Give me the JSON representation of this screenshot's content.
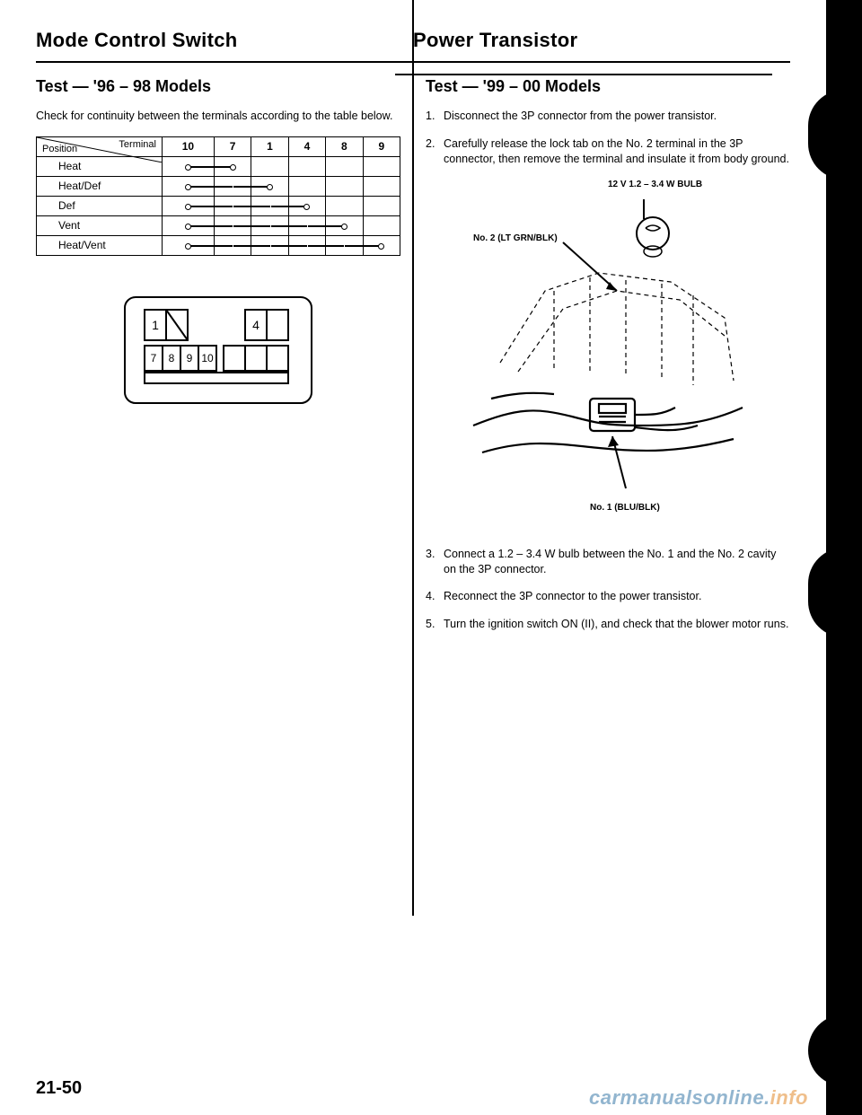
{
  "left_title": "Mode Control Switch",
  "right_title": "Power Transistor",
  "left": {
    "subtitle": "Test — '96 – 98 Models",
    "intro": "Check for continuity between the terminals according to the table below.",
    "table": {
      "diag_top": "Terminal",
      "diag_bottom": "Position",
      "cols": [
        "10",
        "7",
        "1",
        "4",
        "8",
        "9"
      ],
      "rows": [
        "Heat",
        "Heat/Def",
        "Def",
        "Vent",
        "Heat/Vent"
      ],
      "continuity": [
        [
          0,
          1
        ],
        [
          0,
          2
        ],
        [
          0,
          3
        ],
        [
          0,
          4
        ],
        [
          0,
          5
        ]
      ]
    },
    "connector_pins": {
      "top_left": "1",
      "top_right": "4",
      "bottom": [
        "7",
        "8",
        "9",
        "10"
      ]
    }
  },
  "right": {
    "subtitle": "Test — '99 – 00 Models",
    "steps_top": [
      "Disconnect the 3P connector from the power transistor.",
      "Carefully release the lock tab on the No. 2 terminal in the 3P connector, then remove the terminal and insulate it from body ground."
    ],
    "labels": {
      "bulb": "12 V 1.2 – 3.4 W BULB",
      "no2": "No. 2 (LT GRN/BLK)",
      "no1": "No. 1 (BLU/BLK)"
    },
    "steps_bottom": [
      "Connect a 1.2 – 3.4 W bulb between the No. 1 and the No. 2 cavity on the 3P connector.",
      "Reconnect the 3P connector to the power transistor.",
      "Turn the ignition switch ON (II), and check that the blower motor runs."
    ]
  },
  "page_number": "21-50",
  "watermark_a": "carmanualsonline.",
  "watermark_b": "info",
  "colors": {
    "text": "#000000",
    "bg": "#ffffff",
    "watermark_blue": "#3a7aa8",
    "watermark_orange": "#e28a2b"
  }
}
